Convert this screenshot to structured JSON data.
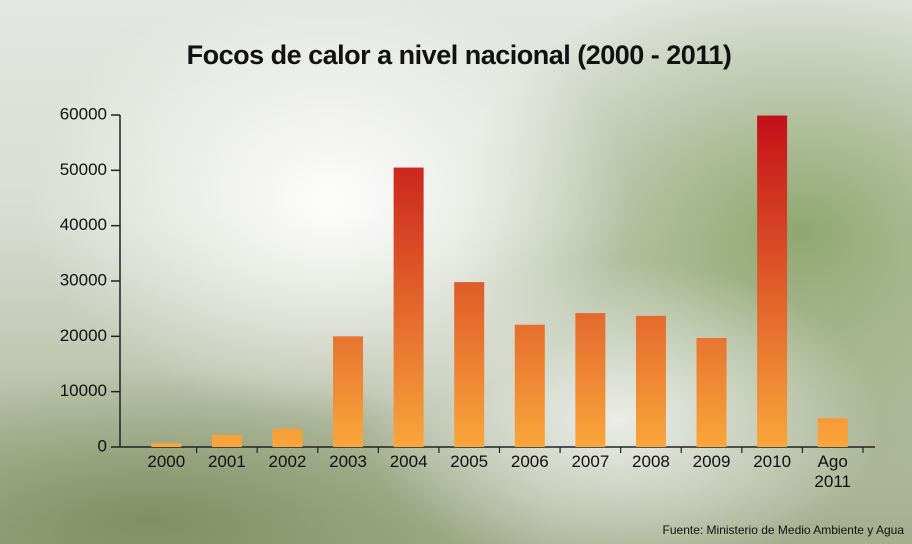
{
  "chart_data": {
    "type": "bar",
    "title": "Focos de calor a nivel nacional (2000 - 2011)",
    "source": "Fuente: Ministerio de Medio Ambiente y Agua",
    "categories": [
      "2000",
      "2001",
      "2002",
      "2003",
      "2004",
      "2005",
      "2006",
      "2007",
      "2008",
      "2009",
      "2010",
      "Ago 2011"
    ],
    "values": [
      700,
      2200,
      3300,
      20000,
      50500,
      29800,
      22100,
      24200,
      23700,
      19700,
      59900,
      5200
    ],
    "gradient_colors": [
      "#c40f18",
      "#f9a63a"
    ],
    "ylim": [
      0,
      60000
    ],
    "yticks": [
      0,
      10000,
      20000,
      30000,
      40000,
      50000,
      60000
    ],
    "grid": false
  }
}
